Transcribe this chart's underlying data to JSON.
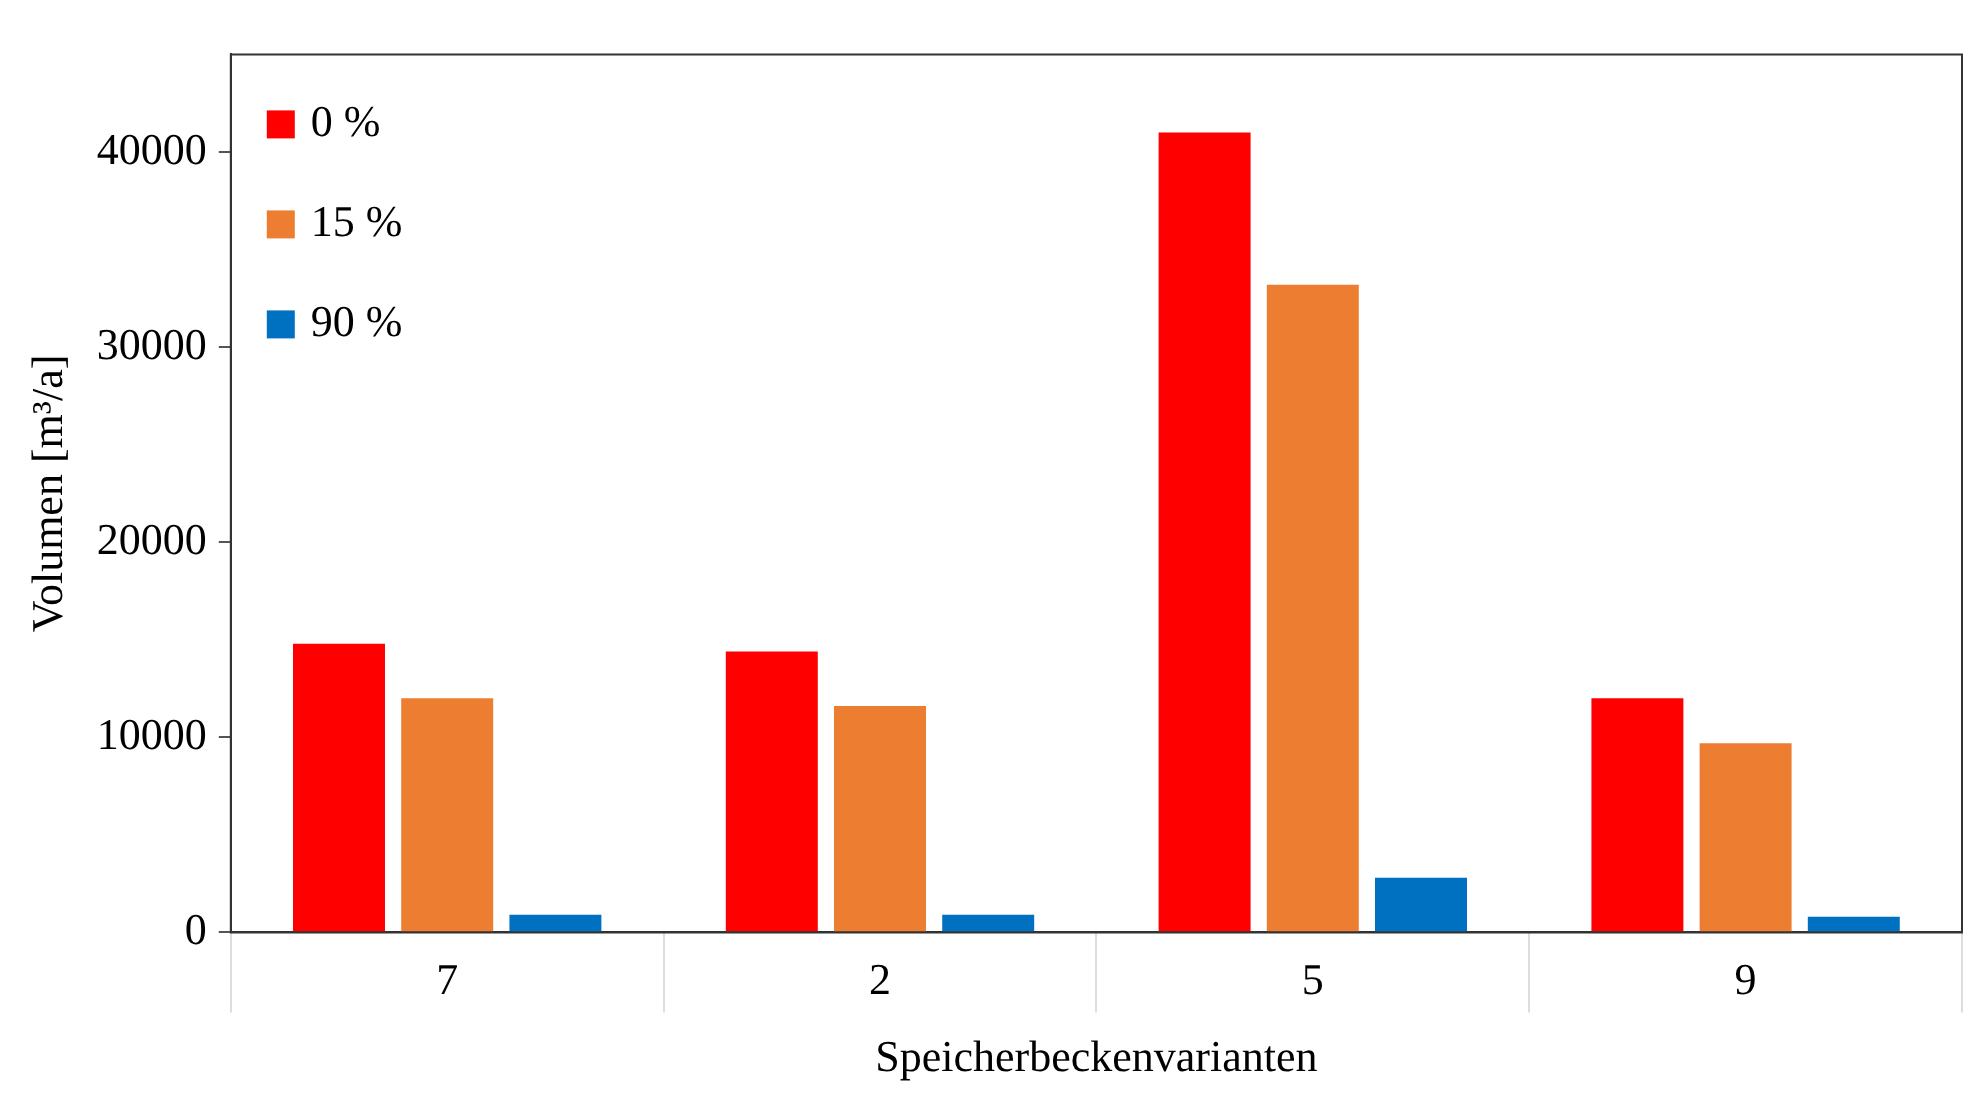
{
  "chart_data": {
    "type": "bar",
    "xlabel": "Speicherbeckenvarianten",
    "ylabel": "Volumen [m³/a]",
    "categories": [
      "7",
      "2",
      "5",
      "9"
    ],
    "series": [
      {
        "name": "0 %",
        "color": "#ff0000",
        "values": [
          14800,
          14400,
          41000,
          12000
        ]
      },
      {
        "name": "15 %",
        "color": "#ed7d31",
        "values": [
          12000,
          11600,
          33200,
          9700
        ]
      },
      {
        "name": "90 %",
        "color": "#0070c0",
        "values": [
          900,
          900,
          2800,
          800
        ]
      }
    ],
    "ylim": [
      0,
      45000
    ],
    "yticks": [
      0,
      10000,
      20000,
      30000,
      40000
    ],
    "grid": false,
    "legend": "top left"
  }
}
